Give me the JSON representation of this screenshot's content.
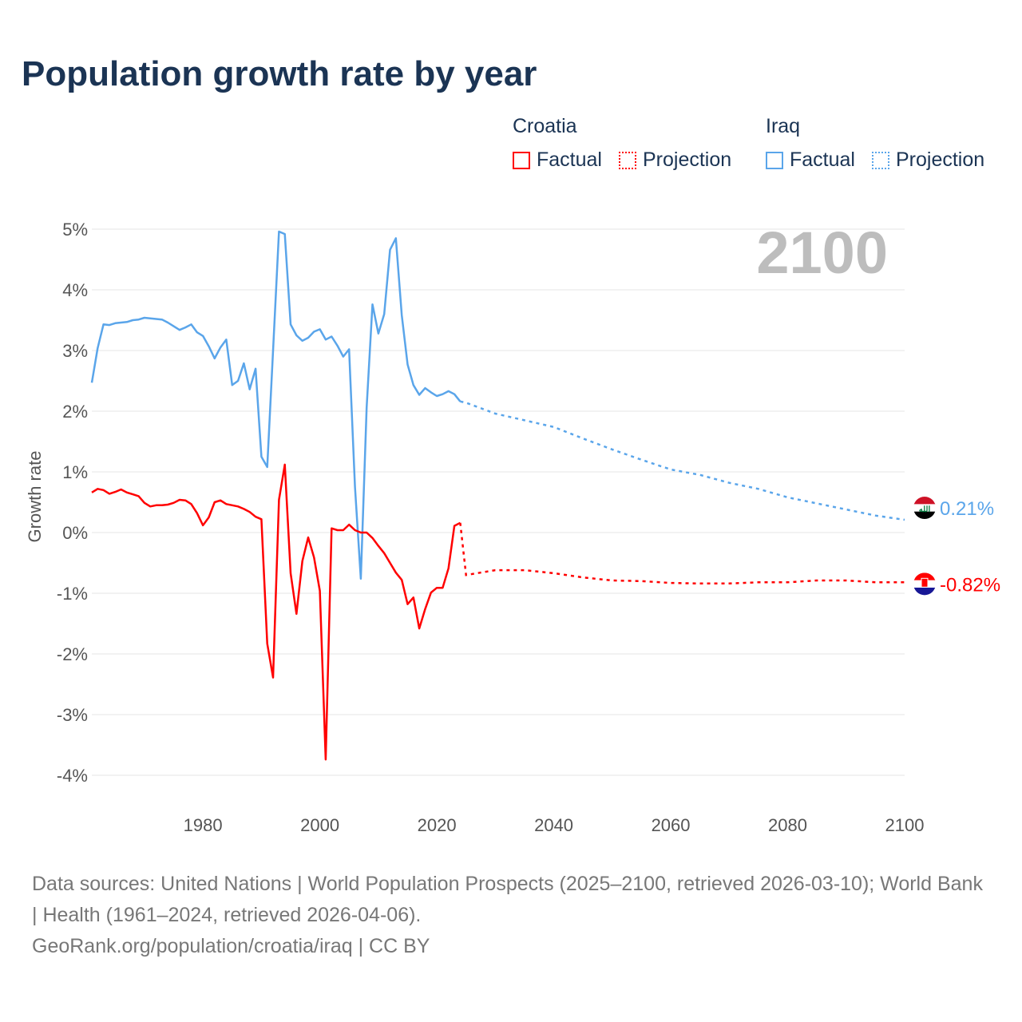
{
  "title": "Population growth rate by year",
  "legend": {
    "groups": [
      {
        "name": "Croatia",
        "factual": "Factual",
        "projection": "Projection",
        "color": "#ff0000"
      },
      {
        "name": "Iraq",
        "factual": "Factual",
        "projection": "Projection",
        "color": "#5aa5ea"
      }
    ]
  },
  "chart_data": {
    "type": "line",
    "title": "Population growth rate by year",
    "xlabel": "",
    "ylabel": "Growth rate",
    "xlim": [
      1961,
      2100
    ],
    "ylim": [
      -4,
      5
    ],
    "x_ticks": [
      "1980",
      "2000",
      "2020",
      "2040",
      "2060",
      "2080",
      "2100"
    ],
    "y_ticks": [
      "5%",
      "4%",
      "3%",
      "2%",
      "1%",
      "0%",
      "-1%",
      "-2%",
      "-3%",
      "-4%"
    ],
    "grid": true,
    "year_label": "2100",
    "series": [
      {
        "name": "Iraq",
        "color": "#5aa5ea",
        "end_label": "0.21%",
        "factual": {
          "x": [
            1961,
            1962,
            1963,
            1964,
            1965,
            1966,
            1967,
            1968,
            1969,
            1970,
            1971,
            1972,
            1973,
            1974,
            1975,
            1976,
            1977,
            1978,
            1979,
            1980,
            1981,
            1982,
            1983,
            1984,
            1985,
            1986,
            1987,
            1988,
            1989,
            1990,
            1991,
            1992,
            1993,
            1994,
            1995,
            1996,
            1997,
            1998,
            1999,
            2000,
            2001,
            2002,
            2003,
            2004,
            2005,
            2006,
            2007,
            2008,
            2009,
            2010,
            2011,
            2012,
            2013,
            2014,
            2015,
            2016,
            2017,
            2018,
            2019,
            2020,
            2021,
            2022,
            2023,
            2024
          ],
          "y": [
            2.47,
            3.04,
            3.43,
            3.42,
            3.45,
            3.46,
            3.47,
            3.5,
            3.51,
            3.54,
            3.53,
            3.52,
            3.51,
            3.46,
            3.4,
            3.34,
            3.38,
            3.43,
            3.3,
            3.24,
            3.07,
            2.87,
            3.05,
            3.18,
            2.43,
            2.5,
            2.79,
            2.36,
            2.7,
            1.25,
            1.08,
            3.0,
            4.96,
            4.92,
            3.43,
            3.25,
            3.16,
            3.21,
            3.31,
            3.35,
            3.18,
            3.23,
            3.08,
            2.9,
            3.02,
            0.75,
            -0.76,
            2.06,
            3.76,
            3.28,
            3.6,
            4.66,
            4.85,
            3.58,
            2.77,
            2.43,
            2.27,
            2.38,
            2.31,
            2.25,
            2.28,
            2.33,
            2.28,
            2.16
          ]
        },
        "projection": {
          "x": [
            2024,
            2025,
            2030,
            2035,
            2040,
            2045,
            2050,
            2055,
            2060,
            2065,
            2070,
            2075,
            2080,
            2085,
            2090,
            2095,
            2100
          ],
          "y": [
            2.16,
            2.14,
            1.96,
            1.85,
            1.74,
            1.55,
            1.37,
            1.2,
            1.04,
            0.95,
            0.82,
            0.72,
            0.58,
            0.48,
            0.38,
            0.28,
            0.21
          ]
        }
      },
      {
        "name": "Croatia",
        "color": "#ff0000",
        "end_label": "-0.82%",
        "factual": {
          "x": [
            1961,
            1962,
            1963,
            1964,
            1965,
            1966,
            1967,
            1968,
            1969,
            1970,
            1971,
            1972,
            1973,
            1974,
            1975,
            1976,
            1977,
            1978,
            1979,
            1980,
            1981,
            1982,
            1983,
            1984,
            1985,
            1986,
            1987,
            1988,
            1989,
            1990,
            1991,
            1992,
            1993,
            1994,
            1995,
            1996,
            1997,
            1998,
            1999,
            2000,
            2001,
            2002,
            2003,
            2004,
            2005,
            2006,
            2007,
            2008,
            2009,
            2010,
            2011,
            2012,
            2013,
            2014,
            2015,
            2016,
            2017,
            2018,
            2019,
            2020,
            2021,
            2022,
            2023,
            2024
          ],
          "y": [
            0.66,
            0.72,
            0.7,
            0.64,
            0.67,
            0.71,
            0.66,
            0.63,
            0.6,
            0.49,
            0.43,
            0.45,
            0.45,
            0.46,
            0.49,
            0.54,
            0.53,
            0.47,
            0.32,
            0.12,
            0.25,
            0.5,
            0.53,
            0.47,
            0.45,
            0.43,
            0.39,
            0.34,
            0.26,
            0.22,
            -1.83,
            -2.39,
            0.54,
            1.12,
            -0.67,
            -1.34,
            -0.47,
            -0.08,
            -0.41,
            -0.96,
            -3.74,
            0.07,
            0.04,
            0.04,
            0.13,
            0.04,
            0.0,
            0.0,
            -0.09,
            -0.22,
            -0.34,
            -0.5,
            -0.66,
            -0.78,
            -1.18,
            -1.07,
            -1.58,
            -1.26,
            -0.99,
            -0.91,
            -0.91,
            -0.59,
            0.11,
            0.16
          ]
        },
        "projection": {
          "x": [
            2024,
            2025,
            2030,
            2035,
            2040,
            2045,
            2050,
            2055,
            2060,
            2065,
            2070,
            2075,
            2080,
            2085,
            2090,
            2095,
            2100
          ],
          "y": [
            0.16,
            -0.7,
            -0.62,
            -0.62,
            -0.67,
            -0.74,
            -0.79,
            -0.8,
            -0.83,
            -0.84,
            -0.84,
            -0.82,
            -0.82,
            -0.79,
            -0.79,
            -0.82,
            -0.82
          ]
        }
      }
    ]
  },
  "footer": {
    "sources": "Data sources: United Nations | World Population Prospects (2025–2100, retrieved 2026-03-10); World Bank | Health (1961–2024, retrieved 2026-04-06).",
    "credit": "GeoRank.org/population/croatia/iraq | CC BY"
  }
}
